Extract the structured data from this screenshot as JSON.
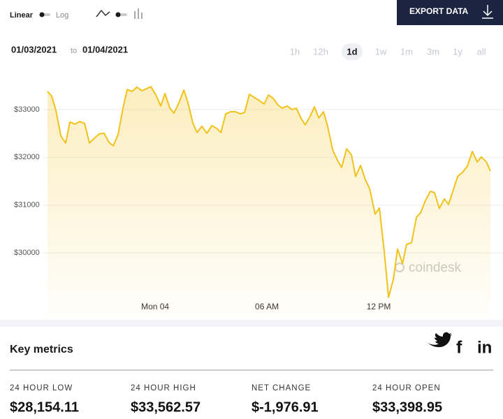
{
  "controls": {
    "scale_options": [
      "Linear",
      "Log"
    ],
    "export_button": "EXPORT DATA",
    "date_from": "01/03/2021",
    "date_separator": "to",
    "date_to": "01/04/2021",
    "ranges": [
      "1h",
      "12h",
      "1d",
      "1w",
      "1m",
      "3m",
      "1y",
      "all"
    ],
    "active_range": "1d"
  },
  "chart_data": {
    "type": "line",
    "color": "#f2c21b",
    "watermark": "coindesk",
    "x": [
      -5.78,
      -5.55,
      -5.33,
      -5.06,
      -4.8,
      -4.58,
      -4.31,
      -4.05,
      -3.79,
      -3.53,
      -3.26,
      -3.0,
      -2.74,
      -2.48,
      -2.25,
      -1.99,
      -1.73,
      -1.5,
      -1.24,
      -0.98,
      -0.71,
      -0.45,
      -0.23,
      0.04,
      0.3,
      0.53,
      0.79,
      1.01,
      1.28,
      1.54,
      1.76,
      2.03,
      2.25,
      2.51,
      2.78,
      3.04,
      3.3,
      3.53,
      3.79,
      4.05,
      4.31,
      4.58,
      4.8,
      5.06,
      5.33,
      5.59,
      5.85,
      6.08,
      6.34,
      6.6,
      6.83,
      7.09,
      7.35,
      7.58,
      7.84,
      8.06,
      8.33,
      8.55,
      8.78,
      9.04,
      9.26,
      9.53,
      9.79,
      10.01,
      10.28,
      10.54,
      10.76,
      11.03,
      11.29,
      11.51,
      11.81,
      12.04,
      12.3,
      12.53,
      12.79,
      13.01,
      13.28,
      13.5,
      13.76,
      14.03,
      14.25,
      14.51,
      14.78,
      15.0,
      15.26,
      15.53,
      15.75,
      16.01,
      16.24,
      16.5,
      16.76,
      17.03,
      17.29,
      17.51,
      17.78,
      18.0
    ],
    "values": [
      33380,
      33280,
      32985,
      32445,
      32300,
      32740,
      32695,
      32750,
      32710,
      32300,
      32400,
      32490,
      32505,
      32315,
      32240,
      32475,
      33030,
      33420,
      33380,
      33470,
      33395,
      33440,
      33480,
      33305,
      33075,
      33335,
      33030,
      32925,
      33145,
      33410,
      33145,
      32710,
      32520,
      32650,
      32505,
      32665,
      32605,
      32520,
      32910,
      32955,
      32955,
      32910,
      32940,
      33320,
      33250,
      33190,
      33115,
      33305,
      33235,
      33090,
      33030,
      33075,
      33000,
      33030,
      32810,
      32680,
      32870,
      33060,
      32825,
      32955,
      32650,
      32155,
      31935,
      31790,
      32180,
      32050,
      31600,
      31830,
      31525,
      31350,
      30810,
      30940,
      30030,
      29070,
      29450,
      30080,
      29775,
      30180,
      30210,
      30750,
      30840,
      31100,
      31290,
      31260,
      30930,
      31130,
      31015,
      31320,
      31600,
      31685,
      31815,
      32125,
      31905,
      32010,
      31905,
      31715
    ],
    "xlim": [
      -5.78,
      18.0
    ],
    "xticks": [
      {
        "value": 0,
        "label": "Mon 04"
      },
      {
        "value": 6,
        "label": "06 AM"
      },
      {
        "value": 12,
        "label": "12 PM"
      }
    ],
    "ylim": [
      28642,
      33905
    ],
    "yticks": [
      {
        "value": 30000,
        "label": "$30000"
      },
      {
        "value": 31000,
        "label": "$31000"
      },
      {
        "value": 32000,
        "label": "$32000"
      },
      {
        "value": 33000,
        "label": "$33000"
      }
    ],
    "grid": true
  },
  "key_metrics": {
    "title": "Key metrics",
    "social": [
      "f",
      "in"
    ],
    "items": [
      {
        "label": "24 HOUR LOW",
        "value": "$28,154.11"
      },
      {
        "label": "24 HOUR HIGH",
        "value": "$33,562.57"
      },
      {
        "label": "NET CHANGE",
        "value": "$-1,976.91"
      },
      {
        "label": "24 HOUR OPEN",
        "value": "$33,398.95"
      }
    ]
  }
}
